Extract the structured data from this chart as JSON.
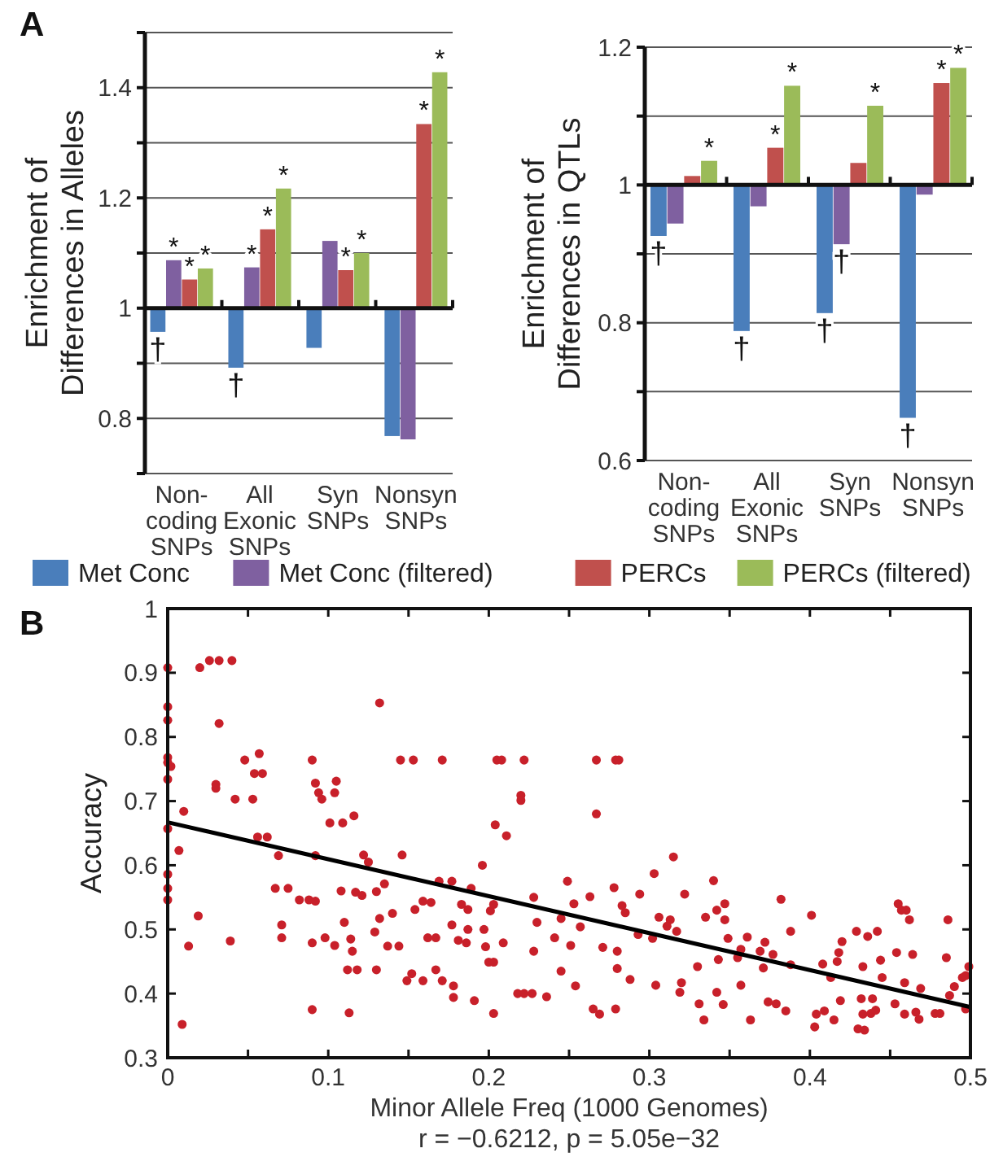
{
  "chart_data": [
    {
      "type": "bar",
      "title": "A",
      "ylabel": "Enrichment of Differences in Alleles",
      "categories": [
        "Non-coding SNPs",
        "All Exonic SNPs",
        "Syn SNPs",
        "Nonsyn SNPs"
      ],
      "ylim": [
        0.7,
        1.5
      ],
      "yticks": [
        {
          "value": 0.7,
          "label": null
        },
        0.8,
        {
          "value": 0.9,
          "label": null
        },
        1,
        {
          "value": 1.1,
          "label": null
        },
        1.2,
        {
          "value": 1.3,
          "label": null
        },
        1.4,
        {
          "value": 1.5,
          "label": null
        }
      ],
      "grid": true,
      "legend": "bottom",
      "ref_lines": [
        {
          "axis": "y",
          "value": 1
        }
      ],
      "series": [
        {
          "name": "Met Conc",
          "color": "#4a7ebb",
          "base": [
            1,
            1,
            1,
            1
          ],
          "values": [
            -0.043,
            -0.108,
            -0.072,
            -0.232
          ],
          "value_labels": [
            "†",
            "†",
            null,
            null
          ]
        },
        {
          "name": "Met Conc (filtered)",
          "color": "#7f60a0",
          "base": [
            1,
            1,
            1,
            1
          ],
          "values": [
            0.087,
            0.074,
            0.122,
            -0.238
          ],
          "value_labels": [
            "*",
            "*",
            null,
            null
          ]
        },
        {
          "name": "PERCs",
          "color": "#c0504d",
          "base": [
            1,
            1,
            1,
            1
          ],
          "values": [
            0.052,
            0.143,
            0.069,
            0.334
          ],
          "value_labels": [
            "*",
            "*",
            "*",
            "*"
          ]
        },
        {
          "name": "PERCs (filtered)",
          "color": "#9bbb59",
          "base": [
            1,
            1,
            1,
            1
          ],
          "values": [
            0.072,
            0.217,
            0.1,
            0.428
          ],
          "value_labels": [
            "*",
            "*",
            "*",
            "*"
          ]
        }
      ]
    },
    {
      "type": "bar",
      "ylabel": "Enrichment of Differences in QTLs",
      "categories": [
        "Non-coding SNPs",
        "All Exonic SNPs",
        "Syn SNPs",
        "Nonsyn SNPs"
      ],
      "ylim": [
        0.6,
        1.2
      ],
      "yticks": [
        0.6,
        {
          "value": 0.7,
          "label": null
        },
        0.8,
        {
          "value": 0.9,
          "label": null
        },
        1,
        {
          "value": 1.1,
          "label": null
        },
        1.2
      ],
      "grid": true,
      "ref_lines": [
        {
          "axis": "y",
          "value": 1
        }
      ],
      "series": [
        {
          "color": "#4a7ebb",
          "base": [
            1,
            1,
            1,
            1
          ],
          "values": [
            -0.074,
            -0.212,
            -0.186,
            -0.338
          ],
          "value_labels": [
            "†",
            "†",
            "†",
            "†"
          ]
        },
        {
          "color": "#7f60a0",
          "base": [
            1,
            1,
            1,
            1
          ],
          "values": [
            -0.056,
            -0.031,
            -0.086,
            -0.014
          ],
          "value_labels": [
            null,
            null,
            "†",
            null
          ]
        },
        {
          "color": "#c0504d",
          "base": [
            1,
            1,
            1,
            1
          ],
          "values": [
            0.013,
            0.054,
            0.032,
            0.148
          ],
          "value_labels": [
            null,
            "*",
            null,
            "*"
          ]
        },
        {
          "color": "#9bbb59",
          "base": [
            1,
            1,
            1,
            1
          ],
          "values": [
            0.035,
            0.144,
            0.115,
            0.17
          ],
          "value_labels": [
            "*",
            "*",
            "*",
            "*"
          ]
        }
      ]
    },
    {
      "type": "scatter",
      "title": "B",
      "xlabel": "Minor Allele Freq (1000 Genomes)",
      "ylabel": "Accuracy",
      "annotations": [
        "r = −0.6212, p = 5.05e−32"
      ],
      "xlim": [
        0,
        0.5
      ],
      "xticks": [
        0,
        {
          "value": 0.05,
          "label": null
        },
        0.1,
        {
          "value": 0.15,
          "label": null
        },
        0.2,
        {
          "value": 0.25,
          "label": null
        },
        0.3,
        {
          "value": 0.35,
          "label": null
        },
        0.4,
        {
          "value": 0.45,
          "label": null
        },
        0.5
      ],
      "ylim": [
        0.3,
        1
      ],
      "yticks": [
        0.3,
        0.4,
        0.5,
        0.6,
        0.7,
        0.8,
        0.9,
        1
      ],
      "grid": false,
      "series": [
        {
          "color": "#c8202a",
          "marker": "circle",
          "x": [
            0,
            0,
            0,
            0,
            0,
            0.002,
            0,
            0,
            0,
            0,
            0,
            0.007,
            0.01,
            0.009,
            0.013,
            0.019,
            0.02,
            0.026,
            0.032,
            0.04,
            0.032,
            0.03,
            0.03,
            0.039,
            0.042,
            0.048,
            0.057,
            0.054,
            0.059,
            0.053,
            0.056,
            0.062,
            0.067,
            0.069,
            0.071,
            0.071,
            0.075,
            0.082,
            0.088,
            0.09,
            0.092,
            0.094,
            0.096,
            0.104,
            0.105,
            0.101,
            0.092,
            0.092,
            0.09,
            0.09,
            0.098,
            0.104,
            0.108,
            0.109,
            0.116,
            0.11,
            0.114,
            0.112,
            0.113,
            0.118,
            0.115,
            0.117,
            0.122,
            0.125,
            0.121,
            0.13,
            0.129,
            0.13,
            0.132,
            0.135,
            0.132,
            0.137,
            0.14,
            0.144,
            0.145,
            0.146,
            0.149,
            0.152,
            0.153,
            0.154,
            0.159,
            0.159,
            0.162,
            0.164,
            0.167,
            0.167,
            0.169,
            0.171,
            0.171,
            0.177,
            0.177,
            0.178,
            0.178,
            0.181,
            0.183,
            0.186,
            0.187,
            0.189,
            0.187,
            0.191,
            0.196,
            0.197,
            0.198,
            0.2,
            0.203,
            0.201,
            0.203,
            0.204,
            0.203,
            0.205,
            0.208,
            0.209,
            0.211,
            0.218,
            0.22,
            0.22,
            0.222,
            0.222,
            0.227,
            0.228,
            0.228,
            0.23,
            0.236,
            0.241,
            0.245,
            0.245,
            0.249,
            0.251,
            0.254,
            0.267,
            0.279,
            0.281,
            0.267,
            0.315,
            0.303,
            0.34,
            0.322,
            0.294,
            0.278,
            0.263,
            0.253,
            0.283,
            0.285,
            0.306,
            0.313,
            0.311,
            0.317,
            0.293,
            0.302,
            0.335,
            0.342,
            0.347,
            0.347,
            0.349,
            0.361,
            0.357,
            0.369,
            0.372,
            0.377,
            0.382,
            0.388,
            0.401,
            0.388,
            0.371,
            0.355,
            0.343,
            0.33,
            0.32,
            0.319,
            0.304,
            0.288,
            0.28,
            0.271,
            0.28,
            0.257,
            0.265,
            0.269,
            0.279,
            0.331,
            0.334,
            0.342,
            0.346,
            0.357,
            0.363,
            0.374,
            0.379,
            0.385,
            0.403,
            0.404,
            0.409,
            0.415,
            0.408,
            0.413,
            0.417,
            0.418,
            0.42,
            0.419,
            0.429,
            0.43,
            0.434,
            0.432,
            0.433,
            0.438,
            0.441,
            0.439,
            0.436,
            0.442,
            0.433,
            0.444,
            0.445,
            0.453,
            0.454,
            0.455,
            0.457,
            0.46,
            0.462,
            0.459,
            0.459,
            0.464,
            0.466,
            0.468,
            0.469,
            0.478,
            0.481,
            0.486,
            0.485,
            0.487,
            0.49,
            0.495,
            0.497,
            0.499,
            0.497
          ],
          "values": [
            0.908,
            0.847,
            0.826,
            0.768,
            0.76,
            0.754,
            0.734,
            0.657,
            0.586,
            0.564,
            0.546,
            0.623,
            0.684,
            0.352,
            0.474,
            0.521,
            0.908,
            0.919,
            0.919,
            0.919,
            0.821,
            0.726,
            0.72,
            0.482,
            0.703,
            0.764,
            0.774,
            0.743,
            0.743,
            0.703,
            0.644,
            0.644,
            0.564,
            0.615,
            0.507,
            0.487,
            0.564,
            0.546,
            0.546,
            0.764,
            0.728,
            0.713,
            0.703,
            0.713,
            0.731,
            0.666,
            0.615,
            0.544,
            0.479,
            0.375,
            0.487,
            0.475,
            0.56,
            0.666,
            0.677,
            0.511,
            0.485,
            0.437,
            0.37,
            0.437,
            0.466,
            0.558,
            0.616,
            0.605,
            0.553,
            0.559,
            0.496,
            0.437,
            0.853,
            0.571,
            0.517,
            0.474,
            0.525,
            0.474,
            0.764,
            0.616,
            0.42,
            0.431,
            0.764,
            0.531,
            0.544,
            0.42,
            0.487,
            0.542,
            0.487,
            0.437,
            0.575,
            0.764,
            0.42,
            0.575,
            0.507,
            0.412,
            0.394,
            0.483,
            0.539,
            0.479,
            0.531,
            0.564,
            0.5,
            0.389,
            0.6,
            0.5,
            0.473,
            0.449,
            0.449,
            0.529,
            0.539,
            0.663,
            0.369,
            0.764,
            0.764,
            0.479,
            0.646,
            0.4,
            0.709,
            0.701,
            0.764,
            0.4,
            0.4,
            0.55,
            0.466,
            0.511,
            0.395,
            0.487,
            0.435,
            0.517,
            0.575,
            0.475,
            0.412,
            0.764,
            0.764,
            0.764,
            0.68,
            0.613,
            0.587,
            0.576,
            0.555,
            0.555,
            0.565,
            0.551,
            0.54,
            0.537,
            0.526,
            0.519,
            0.515,
            0.505,
            0.497,
            0.492,
            0.486,
            0.519,
            0.53,
            0.54,
            0.515,
            0.486,
            0.488,
            0.469,
            0.466,
            0.48,
            0.461,
            0.547,
            0.497,
            0.522,
            0.445,
            0.44,
            0.456,
            0.453,
            0.442,
            0.417,
            0.402,
            0.413,
            0.422,
            0.439,
            0.472,
            0.466,
            0.504,
            0.376,
            0.368,
            0.376,
            0.384,
            0.359,
            0.402,
            0.383,
            0.413,
            0.359,
            0.387,
            0.384,
            0.373,
            0.348,
            0.368,
            0.373,
            0.359,
            0.446,
            0.425,
            0.45,
            0.464,
            0.481,
            0.389,
            0.497,
            0.345,
            0.343,
            0.392,
            0.368,
            0.369,
            0.374,
            0.392,
            0.489,
            0.497,
            0.442,
            0.452,
            0.425,
            0.384,
            0.464,
            0.54,
            0.53,
            0.53,
            0.515,
            0.417,
            0.368,
            0.461,
            0.371,
            0.36,
            0.408,
            0.369,
            0.369,
            0.515,
            0.456,
            0.397,
            0.411,
            0.425,
            0.428,
            0.442,
            0.376
          ]
        },
        {
          "type": "line",
          "color": "#000000",
          "x": [
            0,
            0.5
          ],
          "values": [
            0.667,
            0.379
          ]
        }
      ]
    }
  ]
}
